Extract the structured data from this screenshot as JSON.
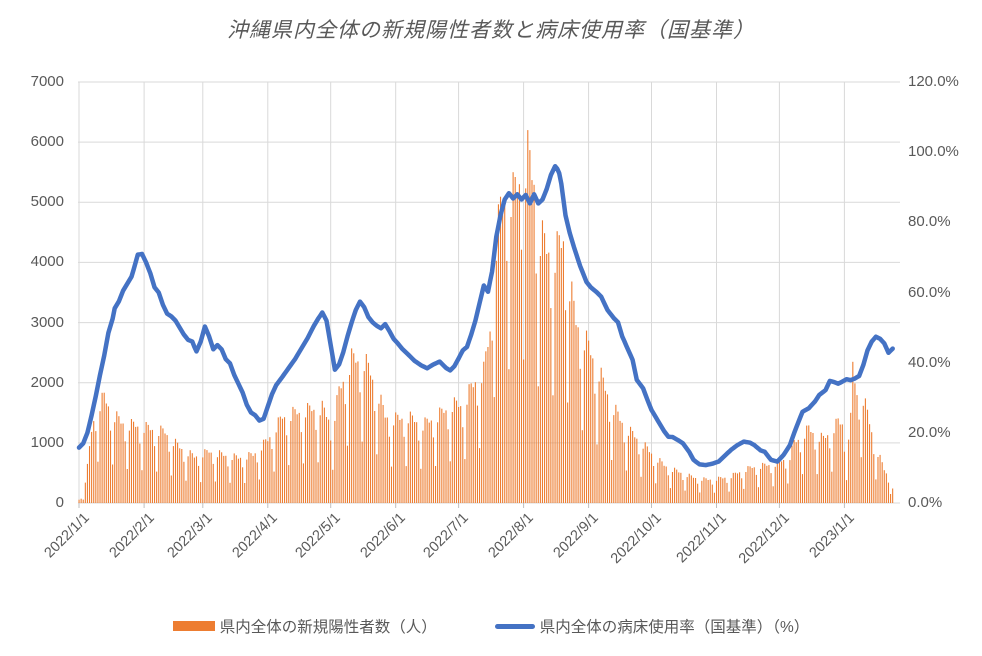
{
  "chart_data": {
    "type": "combo",
    "title": "沖縄県内全体の新規陽性者数と病床使用率（国基準）",
    "legend_position": "bottom",
    "grid": true,
    "colors": {
      "bar": "#ED7D31",
      "line": "#4472C4",
      "gridline": "#D9D9D9",
      "tick_mark": "#BFBFBF",
      "text": "#595959",
      "background": "#FFFFFF"
    },
    "left_axis": {
      "title": "",
      "min": 0,
      "max": 7000,
      "step": 1000,
      "tick_labels": [
        "0",
        "1000",
        "2000",
        "3000",
        "4000",
        "5000",
        "6000",
        "7000"
      ],
      "tick_values": [
        0,
        1000,
        2000,
        3000,
        4000,
        5000,
        6000,
        7000
      ]
    },
    "right_axis": {
      "title": "",
      "min": 0,
      "max": 120,
      "step": 20,
      "tick_labels": [
        "0.0%",
        "20.0%",
        "40.0%",
        "60.0%",
        "80.0%",
        "100.0%",
        "120.0%"
      ],
      "tick_values": [
        0,
        20,
        40,
        60,
        80,
        100,
        120
      ]
    },
    "x": {
      "start_date": "2022/1/1",
      "end_date_of_data": "2023/1/24",
      "days_total": 392,
      "data_days": 389,
      "tick_labels": [
        "2022/1/1",
        "2022/2/1",
        "2022/3/1",
        "2022/4/1",
        "2022/5/1",
        "2022/6/1",
        "2022/7/1",
        "2022/8/1",
        "2022/9/1",
        "2022/10/1",
        "2022/11/1",
        "2022/12/1",
        "2023/1/1"
      ],
      "tick_days": [
        0,
        31,
        59,
        90,
        120,
        151,
        181,
        212,
        243,
        273,
        304,
        334,
        365
      ]
    },
    "series": [
      {
        "name": "県内全体の新規陽性者数（人）",
        "type": "bar",
        "axis": "left",
        "color": "#ED7D31",
        "weekday_pattern_day0_saturday": [
          0.92,
          0.72,
          0.4,
          0.86,
          1.0,
          0.97,
          0.91
        ],
        "weekly_peak_envelope_day_value": [
          [
            0,
            60
          ],
          [
            2,
            140
          ],
          [
            4,
            650
          ],
          [
            6,
            1300
          ],
          [
            8,
            1660
          ],
          [
            12,
            1890
          ],
          [
            16,
            1600
          ],
          [
            20,
            1450
          ],
          [
            24,
            1400
          ],
          [
            27,
            1390
          ],
          [
            34,
            1330
          ],
          [
            41,
            1270
          ],
          [
            45,
            1100
          ],
          [
            48,
            1000
          ],
          [
            55,
            830
          ],
          [
            62,
            920
          ],
          [
            69,
            860
          ],
          [
            76,
            810
          ],
          [
            83,
            860
          ],
          [
            90,
            1130
          ],
          [
            97,
            1540
          ],
          [
            104,
            1620
          ],
          [
            111,
            1680
          ],
          [
            116,
            1700
          ],
          [
            121,
            1380
          ],
          [
            124,
            2000
          ],
          [
            130,
            2570
          ],
          [
            136,
            2550
          ],
          [
            139,
            2330
          ],
          [
            143,
            1920
          ],
          [
            146,
            1560
          ],
          [
            150,
            1500
          ],
          [
            157,
            1540
          ],
          [
            164,
            1400
          ],
          [
            171,
            1560
          ],
          [
            178,
            1760
          ],
          [
            183,
            1750
          ],
          [
            187,
            2050
          ],
          [
            190,
            2250
          ],
          [
            193,
            2350
          ],
          [
            196,
            3100
          ],
          [
            198,
            4400
          ],
          [
            201,
            5250
          ],
          [
            204,
            5590
          ],
          [
            207,
            5500
          ],
          [
            211,
            5850
          ],
          [
            214,
            6200
          ],
          [
            217,
            5750
          ],
          [
            219,
            4850
          ],
          [
            223,
            4550
          ],
          [
            227,
            4450
          ],
          [
            231,
            4730
          ],
          [
            234,
            3900
          ],
          [
            237,
            3250
          ],
          [
            241,
            2950
          ],
          [
            244,
            2700
          ],
          [
            248,
            2350
          ],
          [
            251,
            2050
          ],
          [
            255,
            1700
          ],
          [
            258,
            1500
          ],
          [
            262,
            1300
          ],
          [
            265,
            1200
          ],
          [
            269,
            1050
          ],
          [
            272,
            930
          ],
          [
            276,
            780
          ],
          [
            279,
            680
          ],
          [
            283,
            600
          ],
          [
            286,
            560
          ],
          [
            290,
            500
          ],
          [
            293,
            460
          ],
          [
            297,
            430
          ],
          [
            300,
            420
          ],
          [
            304,
            430
          ],
          [
            307,
            450
          ],
          [
            311,
            480
          ],
          [
            314,
            540
          ],
          [
            318,
            600
          ],
          [
            321,
            640
          ],
          [
            325,
            660
          ],
          [
            328,
            680
          ],
          [
            332,
            700
          ],
          [
            335,
            760
          ],
          [
            339,
            830
          ],
          [
            341,
            1080
          ],
          [
            345,
            1200
          ],
          [
            348,
            1330
          ],
          [
            352,
            1200
          ],
          [
            355,
            1150
          ],
          [
            359,
            1300
          ],
          [
            362,
            1450
          ],
          [
            364,
            1420
          ],
          [
            366,
            950
          ],
          [
            368,
            1500
          ],
          [
            369,
            2420
          ],
          [
            371,
            1950
          ],
          [
            374,
            1880
          ],
          [
            376,
            1600
          ],
          [
            378,
            1280
          ],
          [
            380,
            980
          ],
          [
            382,
            800
          ],
          [
            384,
            600
          ],
          [
            386,
            470
          ],
          [
            388,
            280
          ]
        ]
      },
      {
        "name": "県内全体の病床使用率（国基準）（%）",
        "type": "line",
        "axis": "right",
        "color": "#4472C4",
        "stroke_width": 4.5,
        "points_day_percent": [
          [
            0,
            15.8
          ],
          [
            2,
            17
          ],
          [
            4,
            20
          ],
          [
            6,
            25
          ],
          [
            8,
            30.5
          ],
          [
            10,
            36.5
          ],
          [
            12,
            42
          ],
          [
            14,
            48.5
          ],
          [
            16,
            52.5
          ],
          [
            17,
            55.5
          ],
          [
            19,
            57.5
          ],
          [
            21,
            60.5
          ],
          [
            23,
            62.5
          ],
          [
            25,
            64.5
          ],
          [
            26,
            66.5
          ],
          [
            28,
            70.8
          ],
          [
            30,
            71
          ],
          [
            32,
            68.5
          ],
          [
            34,
            65.5
          ],
          [
            36,
            61.5
          ],
          [
            38,
            60
          ],
          [
            40,
            56.5
          ],
          [
            42,
            54
          ],
          [
            44,
            53.2
          ],
          [
            46,
            52
          ],
          [
            48,
            50
          ],
          [
            50,
            48
          ],
          [
            52,
            46.5
          ],
          [
            54,
            46
          ],
          [
            55,
            44.5
          ],
          [
            56,
            43.2
          ],
          [
            58,
            46
          ],
          [
            60,
            50.3
          ],
          [
            62,
            47.5
          ],
          [
            64,
            43.8
          ],
          [
            66,
            45
          ],
          [
            68,
            43.8
          ],
          [
            70,
            41
          ],
          [
            72,
            39.8
          ],
          [
            74,
            36.5
          ],
          [
            76,
            34
          ],
          [
            78,
            31.5
          ],
          [
            80,
            28
          ],
          [
            82,
            25.8
          ],
          [
            84,
            25
          ],
          [
            86,
            23.5
          ],
          [
            88,
            24
          ],
          [
            90,
            27.5
          ],
          [
            92,
            31
          ],
          [
            94,
            33.6
          ],
          [
            97,
            36
          ],
          [
            100,
            38.5
          ],
          [
            103,
            41
          ],
          [
            106,
            44
          ],
          [
            109,
            47
          ],
          [
            112,
            50.5
          ],
          [
            114,
            52.5
          ],
          [
            116,
            54.3
          ],
          [
            118,
            52
          ],
          [
            120,
            45
          ],
          [
            122,
            38
          ],
          [
            124,
            39.5
          ],
          [
            126,
            43
          ],
          [
            128,
            47.5
          ],
          [
            130,
            51.5
          ],
          [
            132,
            55
          ],
          [
            134,
            57.4
          ],
          [
            136,
            55.8
          ],
          [
            138,
            53
          ],
          [
            140,
            51.5
          ],
          [
            142,
            50.5
          ],
          [
            144,
            49.8
          ],
          [
            146,
            51
          ],
          [
            148,
            49
          ],
          [
            150,
            46.8
          ],
          [
            152,
            45.5
          ],
          [
            154,
            44
          ],
          [
            157,
            42.3
          ],
          [
            160,
            40.5
          ],
          [
            163,
            39.3
          ],
          [
            166,
            38.4
          ],
          [
            169,
            39.5
          ],
          [
            172,
            40.3
          ],
          [
            175,
            38.5
          ],
          [
            177,
            37.8
          ],
          [
            179,
            39
          ],
          [
            181,
            41.2
          ],
          [
            183,
            43.5
          ],
          [
            185,
            44.5
          ],
          [
            187,
            48
          ],
          [
            189,
            52
          ],
          [
            191,
            57
          ],
          [
            193,
            62
          ],
          [
            195,
            60.2
          ],
          [
            197,
            66
          ],
          [
            199,
            75.9
          ],
          [
            201,
            82
          ],
          [
            203,
            86.5
          ],
          [
            205,
            88.3
          ],
          [
            207,
            86.8
          ],
          [
            209,
            88
          ],
          [
            211,
            86.5
          ],
          [
            213,
            87.8
          ],
          [
            215,
            85.4
          ],
          [
            217,
            88
          ],
          [
            219,
            85.4
          ],
          [
            221,
            86.5
          ],
          [
            223,
            89.5
          ],
          [
            225,
            93.5
          ],
          [
            227,
            96
          ],
          [
            228,
            95.3
          ],
          [
            229,
            94
          ],
          [
            230,
            91
          ],
          [
            232,
            82
          ],
          [
            234,
            77
          ],
          [
            236,
            73
          ],
          [
            239,
            67.5
          ],
          [
            242,
            63
          ],
          [
            244,
            61.5
          ],
          [
            247,
            60
          ],
          [
            249,
            58.8
          ],
          [
            252,
            55
          ],
          [
            255,
            52.7
          ],
          [
            257,
            51.5
          ],
          [
            259,
            47.5
          ],
          [
            262,
            43.5
          ],
          [
            264,
            40.8
          ],
          [
            266,
            35.1
          ],
          [
            269,
            32.7
          ],
          [
            271,
            29.5
          ],
          [
            273,
            26.5
          ],
          [
            276,
            23.5
          ],
          [
            279,
            20.5
          ],
          [
            281,
            18.9
          ],
          [
            283,
            18.8
          ],
          [
            286,
            17.8
          ],
          [
            288,
            17
          ],
          [
            291,
            14.5
          ],
          [
            293,
            12.3
          ],
          [
            296,
            11
          ],
          [
            299,
            10.8
          ],
          [
            302,
            11.2
          ],
          [
            305,
            11.8
          ],
          [
            308,
            13.5
          ],
          [
            311,
            15.2
          ],
          [
            314,
            16.5
          ],
          [
            317,
            17.5
          ],
          [
            320,
            17.2
          ],
          [
            322,
            16.5
          ],
          [
            325,
            15
          ],
          [
            327,
            14.6
          ],
          [
            330,
            12.3
          ],
          [
            333,
            11.8
          ],
          [
            336,
            13.7
          ],
          [
            339,
            16.5
          ],
          [
            341,
            19.9
          ],
          [
            343,
            23
          ],
          [
            345,
            26
          ],
          [
            348,
            27
          ],
          [
            351,
            29
          ],
          [
            353,
            30.8
          ],
          [
            356,
            32.2
          ],
          [
            358,
            34.8
          ],
          [
            360,
            34.5
          ],
          [
            362,
            34
          ],
          [
            364,
            34.6
          ],
          [
            366,
            35.3
          ],
          [
            368,
            35
          ],
          [
            370,
            35.5
          ],
          [
            372,
            36.2
          ],
          [
            374,
            39.3
          ],
          [
            376,
            43.5
          ],
          [
            378,
            46
          ],
          [
            380,
            47.4
          ],
          [
            382,
            46.8
          ],
          [
            384,
            45.5
          ],
          [
            386,
            42.8
          ],
          [
            388,
            44
          ]
        ]
      }
    ]
  }
}
